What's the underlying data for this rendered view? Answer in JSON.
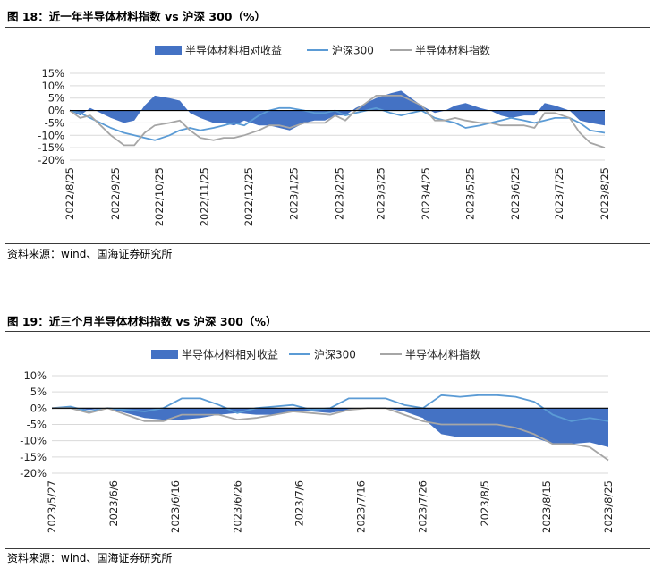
{
  "figures": [
    {
      "title": "图 18：近一年半导体材料指数 vs 沪深 300（%）",
      "source": "资料来源：wind、国海证券研究所"
    },
    {
      "title": "图 19：近三个月半导体材料指数 vs 沪深 300（%）",
      "source": "资料来源：wind、国海证券研究所"
    }
  ],
  "colors": {
    "excess": "#4472C4",
    "hs300": "#5B9BD5",
    "index": "#A6A6A6"
  },
  "chart_data": [
    {
      "type": "area",
      "title": "图 18：近一年半导体材料指数 vs 沪深 300（%）",
      "legend_position": "top",
      "grid": true,
      "ylim": [
        -20,
        15
      ],
      "yticks": [
        "15%",
        "10%",
        "5%",
        "0%",
        "-5%",
        "-10%",
        "-15%",
        "-20%"
      ],
      "x_range": [
        "2022/8/25",
        "2023/8/25"
      ],
      "xticks": [
        "2022/8/25",
        "2022/9/25",
        "2022/10/25",
        "2022/11/25",
        "2022/12/25",
        "2023/1/25",
        "2023/2/25",
        "2023/3/25",
        "2023/4/25",
        "2023/5/25",
        "2023/6/25",
        "2023/7/25",
        "2023/8/25"
      ],
      "series": [
        {
          "name": "半导体材料相对收益",
          "kind": "area",
          "x": [
            "2022/8/25",
            "2022/9/1",
            "2022/9/8",
            "2022/9/15",
            "2022/9/22",
            "2022/10/1",
            "2022/10/8",
            "2022/10/15",
            "2022/10/22",
            "2022/11/1",
            "2022/11/8",
            "2022/11/15",
            "2022/11/22",
            "2022/12/1",
            "2022/12/8",
            "2022/12/15",
            "2022/12/22",
            "2023/1/1",
            "2023/1/8",
            "2023/1/15",
            "2023/1/22",
            "2023/2/1",
            "2023/2/8",
            "2023/2/15",
            "2023/2/22",
            "2023/3/1",
            "2023/3/8",
            "2023/3/15",
            "2023/3/22",
            "2023/4/1",
            "2023/4/8",
            "2023/4/15",
            "2023/4/22",
            "2023/5/1",
            "2023/5/8",
            "2023/5/15",
            "2023/5/22",
            "2023/6/1",
            "2023/6/8",
            "2023/6/15",
            "2023/6/22",
            "2023/7/1",
            "2023/7/8",
            "2023/7/15",
            "2023/7/22",
            "2023/8/1",
            "2023/8/8",
            "2023/8/15",
            "2023/8/25"
          ],
          "values": [
            0,
            -2,
            1,
            -1,
            -3,
            -5,
            -4,
            2,
            6,
            5,
            4,
            -1,
            -3,
            -5,
            -5,
            -6,
            -4,
            -6,
            -6,
            -7,
            -8,
            -5,
            -4,
            -4,
            -2,
            -2,
            1,
            3,
            5,
            7,
            8,
            5,
            2,
            -1,
            0,
            2,
            3,
            1,
            0,
            -2,
            -3,
            -2,
            -2,
            3,
            2,
            0,
            -4,
            -5,
            -6
          ]
        },
        {
          "name": "沪深300",
          "kind": "line",
          "x": [
            "2022/8/25",
            "2022/9/1",
            "2022/9/8",
            "2022/9/15",
            "2022/9/22",
            "2022/10/1",
            "2022/10/8",
            "2022/10/15",
            "2022/10/22",
            "2022/11/1",
            "2022/11/8",
            "2022/11/15",
            "2022/11/22",
            "2022/12/1",
            "2022/12/8",
            "2022/12/15",
            "2022/12/22",
            "2023/1/1",
            "2023/1/8",
            "2023/1/15",
            "2023/1/22",
            "2023/2/1",
            "2023/2/8",
            "2023/2/15",
            "2023/2/22",
            "2023/3/1",
            "2023/3/8",
            "2023/3/15",
            "2023/3/22",
            "2023/4/1",
            "2023/4/8",
            "2023/4/15",
            "2023/4/22",
            "2023/5/1",
            "2023/5/8",
            "2023/5/15",
            "2023/5/22",
            "2023/6/1",
            "2023/6/8",
            "2023/6/15",
            "2023/6/22",
            "2023/7/1",
            "2023/7/8",
            "2023/7/15",
            "2023/7/22",
            "2023/8/1",
            "2023/8/8",
            "2023/8/15",
            "2023/8/25"
          ],
          "values": [
            0,
            -1,
            -3,
            -5,
            -7,
            -9,
            -10,
            -11,
            -12,
            -10,
            -8,
            -7,
            -8,
            -7,
            -6,
            -5,
            -6,
            -2,
            0,
            1,
            1,
            0,
            -1,
            -1,
            0,
            -2,
            -1,
            0,
            1,
            -1,
            -2,
            -1,
            0,
            -3,
            -4,
            -5,
            -7,
            -6,
            -5,
            -4,
            -3,
            -4,
            -5,
            -4,
            -3,
            -3,
            -5,
            -8,
            -9
          ]
        },
        {
          "name": "半导体材料指数",
          "kind": "line",
          "x": [
            "2022/8/25",
            "2022/9/1",
            "2022/9/8",
            "2022/9/15",
            "2022/9/22",
            "2022/10/1",
            "2022/10/8",
            "2022/10/15",
            "2022/10/22",
            "2022/11/1",
            "2022/11/8",
            "2022/11/15",
            "2022/11/22",
            "2022/12/1",
            "2022/12/8",
            "2022/12/15",
            "2022/12/22",
            "2023/1/1",
            "2023/1/8",
            "2023/1/15",
            "2023/1/22",
            "2023/2/1",
            "2023/2/8",
            "2023/2/15",
            "2023/2/22",
            "2023/3/1",
            "2023/3/8",
            "2023/3/15",
            "2023/3/22",
            "2023/4/1",
            "2023/4/8",
            "2023/4/15",
            "2023/4/22",
            "2023/5/1",
            "2023/5/8",
            "2023/5/15",
            "2023/5/22",
            "2023/6/1",
            "2023/6/8",
            "2023/6/15",
            "2023/6/22",
            "2023/7/1",
            "2023/7/8",
            "2023/7/15",
            "2023/7/22",
            "2023/8/1",
            "2023/8/8",
            "2023/8/15",
            "2023/8/25"
          ],
          "values": [
            0,
            -3,
            -2,
            -6,
            -10,
            -14,
            -14,
            -9,
            -6,
            -5,
            -4,
            -8,
            -11,
            -12,
            -11,
            -11,
            -10,
            -8,
            -6,
            -6,
            -7,
            -5,
            -5,
            -5,
            -2,
            -4,
            0,
            3,
            6,
            6,
            6,
            4,
            2,
            -4,
            -4,
            -3,
            -4,
            -5,
            -5,
            -6,
            -6,
            -6,
            -7,
            -1,
            -1,
            -3,
            -9,
            -13,
            -15
          ]
        }
      ]
    },
    {
      "type": "area",
      "title": "图 19：近三个月半导体材料指数 vs 沪深 300（%）",
      "legend_position": "top",
      "grid": true,
      "ylim": [
        -20,
        10
      ],
      "yticks": [
        "10%",
        "5%",
        "0%",
        "-5%",
        "-10%",
        "-15%",
        "-20%"
      ],
      "x_range": [
        "2023/5/27",
        "2023/8/25"
      ],
      "xticks": [
        "2023/5/27",
        "2023/6/6",
        "2023/6/16",
        "2023/6/26",
        "2023/7/6",
        "2023/7/16",
        "2023/7/26",
        "2023/8/5",
        "2023/8/15",
        "2023/8/25"
      ],
      "series": [
        {
          "name": "半导体材料相对收益",
          "kind": "area",
          "x": [
            "2023/5/27",
            "2023/5/30",
            "2023/6/2",
            "2023/6/5",
            "2023/6/8",
            "2023/6/11",
            "2023/6/14",
            "2023/6/17",
            "2023/6/20",
            "2023/6/23",
            "2023/6/26",
            "2023/6/29",
            "2023/7/2",
            "2023/7/5",
            "2023/7/8",
            "2023/7/11",
            "2023/7/14",
            "2023/7/17",
            "2023/7/20",
            "2023/7/23",
            "2023/7/26",
            "2023/7/29",
            "2023/8/1",
            "2023/8/4",
            "2023/8/7",
            "2023/8/10",
            "2023/8/13",
            "2023/8/16",
            "2023/8/19",
            "2023/8/22",
            "2023/8/25"
          ],
          "values": [
            0,
            0,
            -0.5,
            0,
            -1.5,
            -3,
            -3.5,
            -3.5,
            -3,
            -2,
            -1.5,
            -2,
            -2,
            -1,
            -1,
            -1.5,
            -0.5,
            0,
            0,
            -1,
            -3,
            -8,
            -9,
            -9,
            -9,
            -9,
            -9,
            -11,
            -11,
            -10.5,
            -12
          ]
        },
        {
          "name": "沪深300",
          "kind": "line",
          "x": [
            "2023/5/27",
            "2023/5/30",
            "2023/6/2",
            "2023/6/5",
            "2023/6/8",
            "2023/6/11",
            "2023/6/14",
            "2023/6/17",
            "2023/6/20",
            "2023/6/23",
            "2023/6/26",
            "2023/6/29",
            "2023/7/2",
            "2023/7/5",
            "2023/7/8",
            "2023/7/11",
            "2023/7/14",
            "2023/7/17",
            "2023/7/20",
            "2023/7/23",
            "2023/7/26",
            "2023/7/29",
            "2023/8/1",
            "2023/8/4",
            "2023/8/7",
            "2023/8/10",
            "2023/8/13",
            "2023/8/16",
            "2023/8/19",
            "2023/8/22",
            "2023/8/25"
          ],
          "values": [
            0,
            0.5,
            -1,
            0,
            -0.5,
            -1,
            0,
            3,
            3,
            1,
            -1.5,
            0,
            0.5,
            1,
            -0.5,
            0,
            3,
            3,
            3,
            1,
            0,
            4,
            3.5,
            4,
            4,
            3.5,
            2,
            -2,
            -4,
            -3,
            -4
          ]
        },
        {
          "name": "半导体材料指数",
          "kind": "line",
          "x": [
            "2023/5/27",
            "2023/5/30",
            "2023/6/2",
            "2023/6/5",
            "2023/6/8",
            "2023/6/11",
            "2023/6/14",
            "2023/6/17",
            "2023/6/20",
            "2023/6/23",
            "2023/6/26",
            "2023/6/29",
            "2023/7/2",
            "2023/7/5",
            "2023/7/8",
            "2023/7/11",
            "2023/7/14",
            "2023/7/17",
            "2023/7/20",
            "2023/7/23",
            "2023/7/26",
            "2023/7/29",
            "2023/8/1",
            "2023/8/4",
            "2023/8/7",
            "2023/8/10",
            "2023/8/13",
            "2023/8/16",
            "2023/8/19",
            "2023/8/22",
            "2023/8/25"
          ],
          "values": [
            0,
            0,
            -1.5,
            0,
            -2,
            -4,
            -4,
            -2,
            -2,
            -2,
            -3.5,
            -3,
            -2,
            -1,
            -1.5,
            -2,
            -0.5,
            0,
            0,
            -2,
            -4,
            -5,
            -5,
            -5,
            -5,
            -6,
            -8,
            -11,
            -11,
            -12,
            -16
          ]
        }
      ]
    }
  ]
}
